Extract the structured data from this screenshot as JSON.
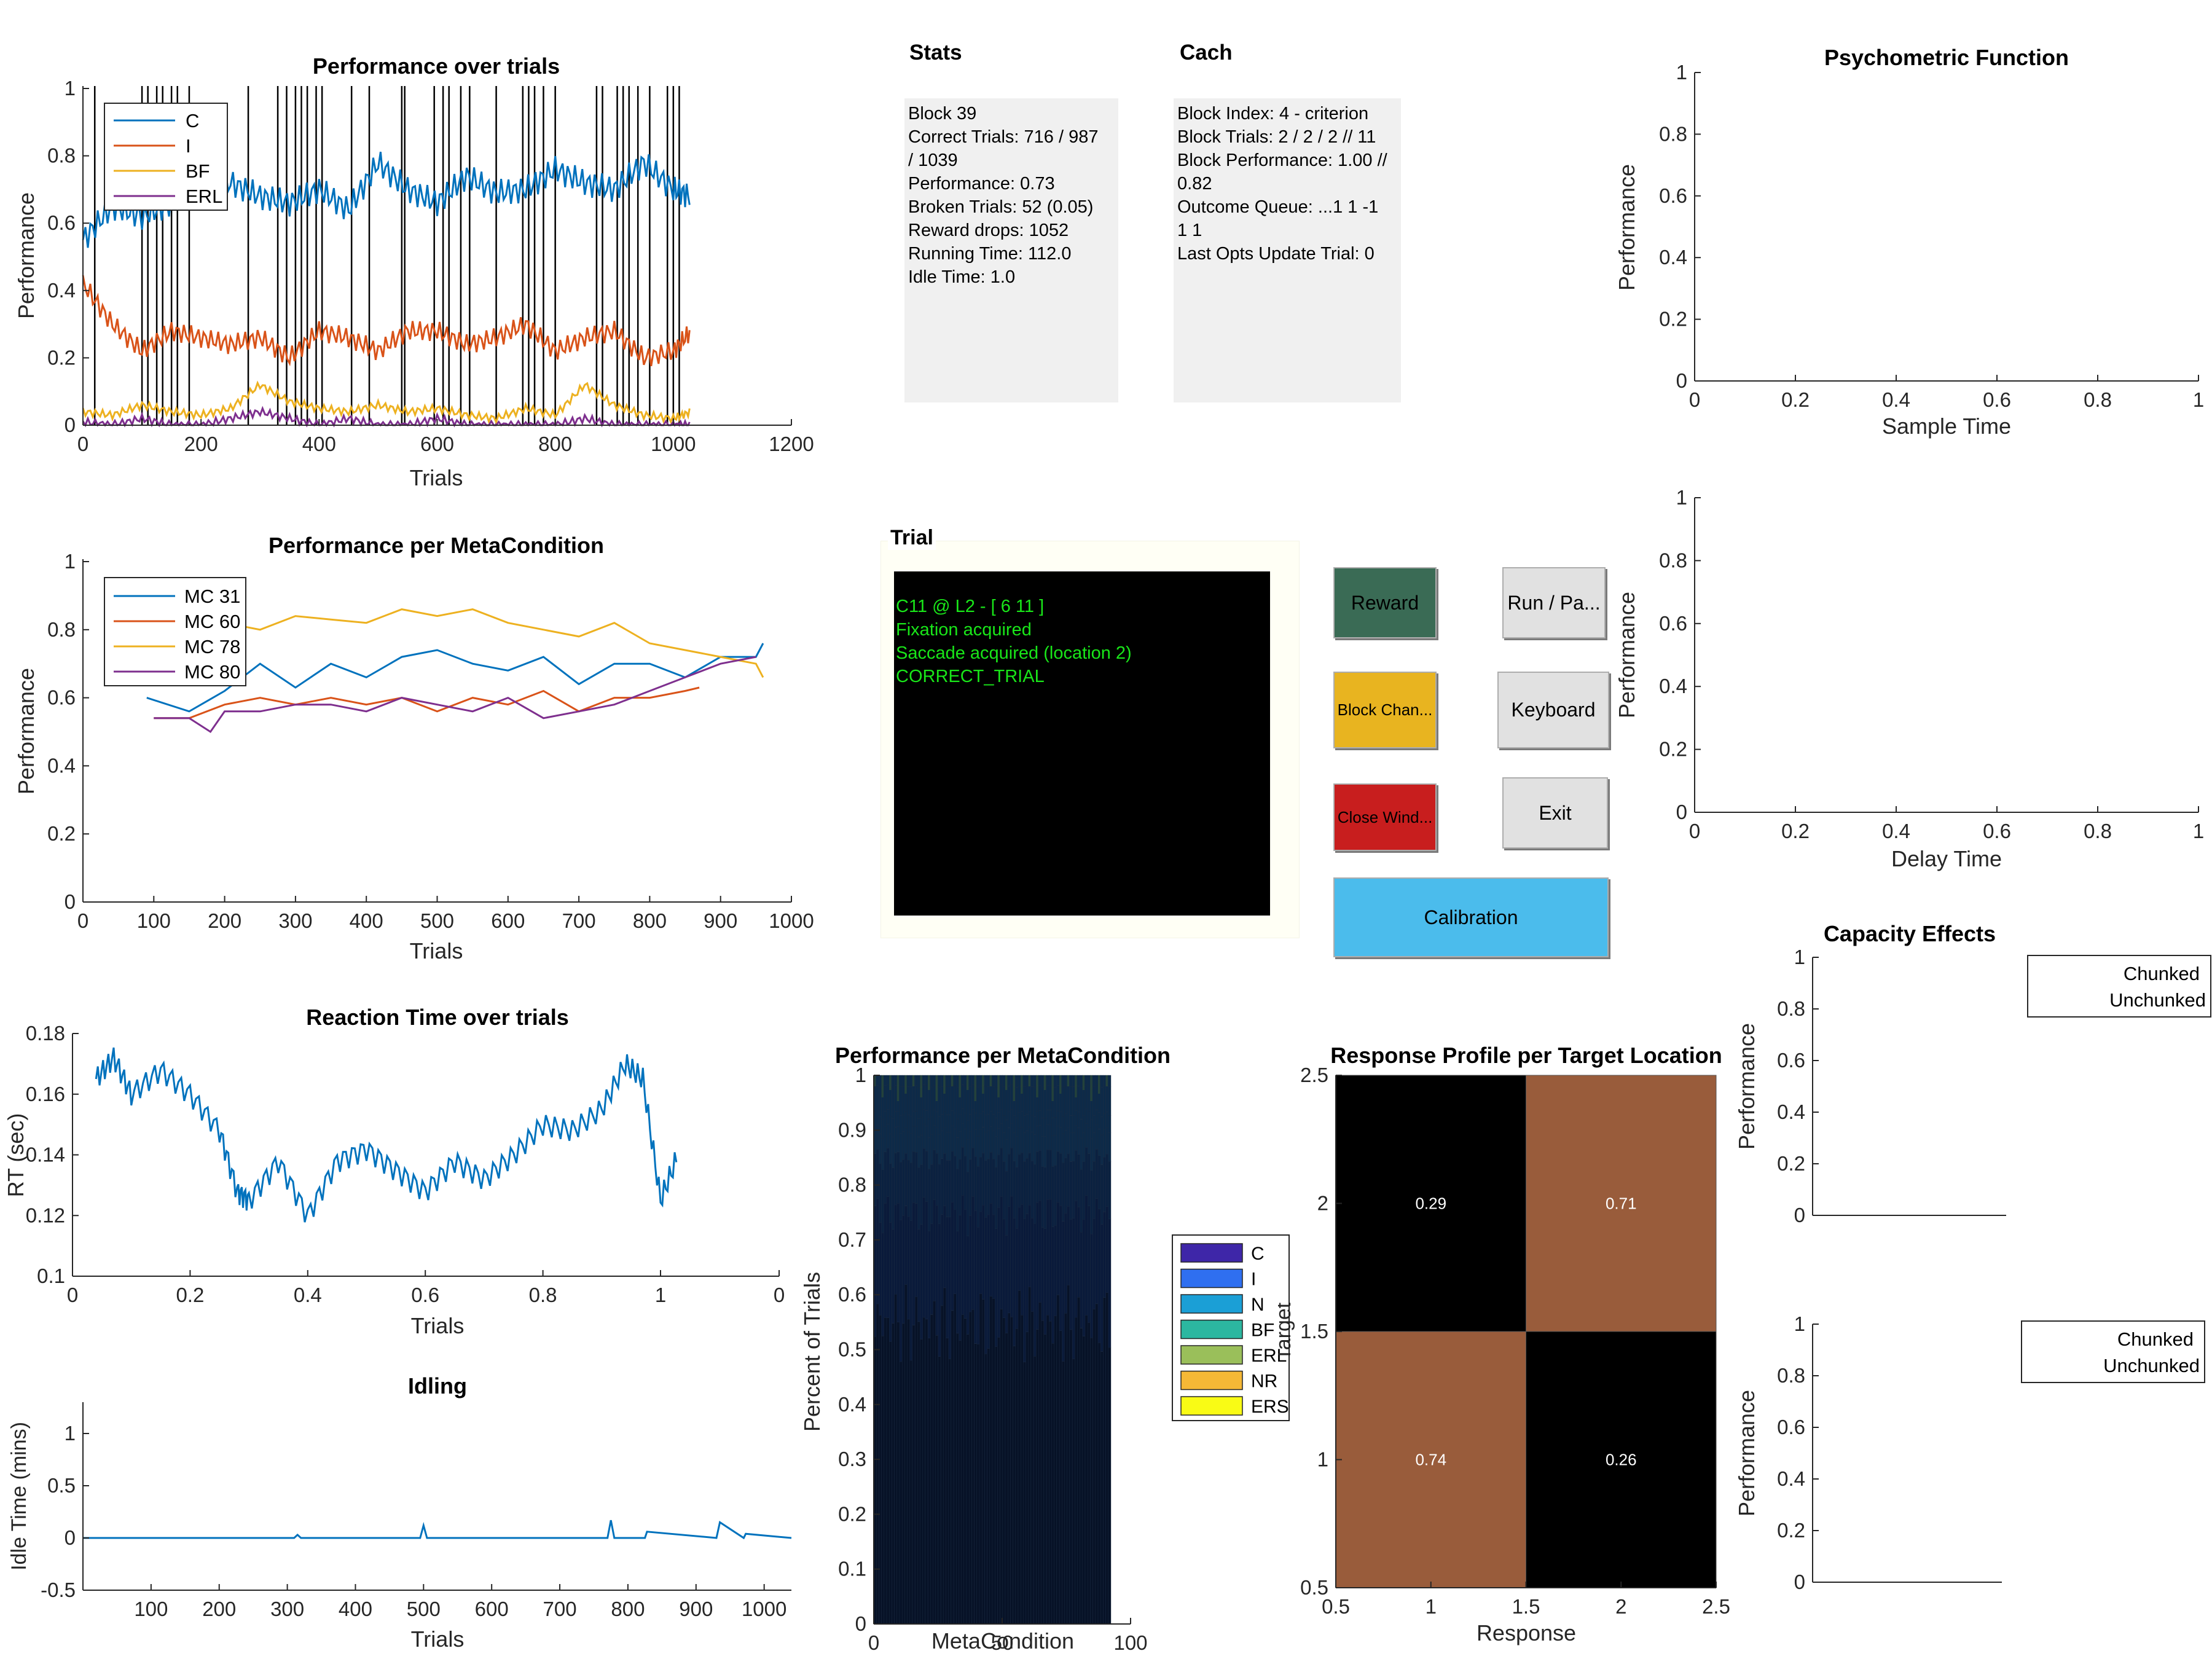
{
  "perf_trials": {
    "title": "Performance over trials",
    "xlabel": "Trials",
    "ylabel": "Performance",
    "xticks": [
      "0",
      "200",
      "400",
      "600",
      "800",
      "1000",
      "1200"
    ],
    "yticks": [
      "0",
      "0.2",
      "0.4",
      "0.6",
      "0.8",
      "1"
    ],
    "legend": [
      {
        "label": "C",
        "color": "#0072BD"
      },
      {
        "label": "I",
        "color": "#D95319"
      },
      {
        "label": "BF",
        "color": "#EDB120"
      },
      {
        "label": "ERL",
        "color": "#7E2F8E"
      }
    ]
  },
  "perf_meta": {
    "title": "Performance per MetaCondition",
    "xlabel": "Trials",
    "ylabel": "Performance",
    "xticks": [
      "0",
      "100",
      "200",
      "300",
      "400",
      "500",
      "600",
      "700",
      "800",
      "900",
      "1000"
    ],
    "yticks": [
      "0",
      "0.2",
      "0.4",
      "0.6",
      "0.8",
      "1"
    ],
    "legend": [
      {
        "label": "MC 31",
        "color": "#0072BD"
      },
      {
        "label": "MC 60",
        "color": "#D95319"
      },
      {
        "label": "MC 78",
        "color": "#EDB120"
      },
      {
        "label": "MC 80",
        "color": "#7E2F8E"
      }
    ]
  },
  "rt": {
    "title": "Reaction Time over trials",
    "xlabel": "Trials",
    "ylabel": "RT (sec)",
    "xticks": [
      "0",
      "0.2",
      "0.4",
      "0.6",
      "0.8",
      "1",
      "0"
    ],
    "yticks": [
      "0.1",
      "0.12",
      "0.14",
      "0.16",
      "0.18"
    ]
  },
  "idle": {
    "title": "Idling",
    "xlabel": "Trials",
    "ylabel": "Idle Time (mins)",
    "xticks": [
      "100",
      "200",
      "300",
      "400",
      "500",
      "600",
      "700",
      "800",
      "900",
      "1000"
    ],
    "yticks": [
      "-0.5",
      "0",
      "0.5",
      "1"
    ]
  },
  "stats": {
    "title": "Stats",
    "lines": [
      "Block 39",
      "Correct Trials: 716 / 987",
      "/ 1039",
      "Performance: 0.73",
      "Broken Trials: 52 (0.05)",
      "Reward drops: 1052",
      "Running Time: 112.0",
      "Idle Time: 1.0"
    ]
  },
  "cach": {
    "title": "Cach",
    "lines": [
      "Block Index: 4 - criterion",
      "Block Trials: 2 / 2 / 2 // 11",
      "Block Performance: 1.00 //",
      "0.82",
      "Outcome Queue: ...1 1 -1",
      "1 1",
      "Last Opts Update Trial: 0"
    ]
  },
  "trial": {
    "title": "Trial",
    "lines": [
      "C11 @ L2 - [ 6 11 ]",
      "Fixation acquired",
      "Saccade acquired (location 2)",
      "CORRECT_TRIAL"
    ]
  },
  "buttons": {
    "reward": "Reward",
    "run_pause": "Run / Pa...",
    "block_change": "Block Chan...",
    "keyboard": "Keyboard",
    "close_window": "Close Wind...",
    "exit": "Exit",
    "calibration": "Calibration"
  },
  "colors": {
    "reward": "#3a6b55",
    "block_change": "#e8b420",
    "close_window": "#c81e1e",
    "calibration": "#4bbcec",
    "default_button": "#e1e1e1"
  },
  "psy1": {
    "title": "Psychometric Function",
    "xlabel": "Sample Time",
    "ylabel": "Performance",
    "xticks": [
      "0",
      "0.2",
      "0.4",
      "0.6",
      "0.8",
      "1"
    ],
    "yticks": [
      "0",
      "0.2",
      "0.4",
      "0.6",
      "0.8",
      "1"
    ]
  },
  "psy2": {
    "xlabel": "Delay Time",
    "ylabel": "Performance",
    "xticks": [
      "0",
      "0.2",
      "0.4",
      "0.6",
      "0.8",
      "1"
    ],
    "yticks": [
      "0",
      "0.2",
      "0.4",
      "0.6",
      "0.8",
      "1"
    ]
  },
  "cap1": {
    "title": "Capacity Effects",
    "ylabel": "Performance",
    "yticks": [
      "0",
      "0.2",
      "0.4",
      "0.6",
      "0.8",
      "1"
    ],
    "legend": [
      "Chunked",
      "Unchunked"
    ]
  },
  "cap2": {
    "ylabel": "Performance",
    "yticks": [
      "0",
      "0.2",
      "0.4",
      "0.6",
      "0.8",
      "1"
    ],
    "legend": [
      "Chunked",
      "Unchunked"
    ]
  },
  "bar_meta": {
    "title": "Performance per MetaCondition",
    "xlabel": "MetaCondition",
    "ylabel": "Percent of Trials",
    "xticks": [
      "0",
      "50",
      "100"
    ],
    "yticks": [
      "0",
      "0.1",
      "0.2",
      "0.3",
      "0.4",
      "0.5",
      "0.6",
      "0.7",
      "0.8",
      "0.9",
      "1"
    ],
    "legend": [
      {
        "label": "C",
        "color": "#3e26a8"
      },
      {
        "label": "I",
        "color": "#2f6ff0"
      },
      {
        "label": "N",
        "color": "#1b9fd6"
      },
      {
        "label": "BF",
        "color": "#2cb7a0"
      },
      {
        "label": "ERL",
        "color": "#9abf5a"
      },
      {
        "label": "NR",
        "color": "#f5b836"
      },
      {
        "label": "ERS",
        "color": "#f9fb15"
      }
    ]
  },
  "heat": {
    "title": "Response Profile per Target Location",
    "xlabel": "Response",
    "ylabel": "Target",
    "xticks": [
      "0.5",
      "1",
      "1.5",
      "2",
      "2.5"
    ],
    "yticks": [
      "0.5",
      "1",
      "1.5",
      "2",
      "2.5"
    ],
    "low_color": "#000000",
    "high_color": "#995c3b"
  },
  "chart_data": [
    {
      "type": "line",
      "title": "Performance over trials",
      "xlabel": "Trials",
      "ylabel": "Performance",
      "xlim": [
        0,
        1200
      ],
      "ylim": [
        0,
        1
      ],
      "grid": false,
      "legend": "top-left",
      "series": [
        {
          "name": "C",
          "x": [
            0,
            50,
            100,
            150,
            200,
            250,
            300,
            350,
            400,
            450,
            500,
            550,
            600,
            650,
            700,
            750,
            800,
            850,
            900,
            950,
            1000,
            1030
          ],
          "values": [
            0.55,
            0.65,
            0.62,
            0.66,
            0.7,
            0.72,
            0.68,
            0.66,
            0.7,
            0.64,
            0.78,
            0.7,
            0.66,
            0.74,
            0.69,
            0.7,
            0.76,
            0.72,
            0.7,
            0.78,
            0.7,
            0.68
          ]
        },
        {
          "name": "I",
          "x": [
            0,
            50,
            100,
            150,
            200,
            250,
            300,
            350,
            400,
            450,
            500,
            550,
            600,
            650,
            700,
            750,
            800,
            850,
            900,
            950,
            1000,
            1030
          ],
          "values": [
            0.42,
            0.3,
            0.22,
            0.28,
            0.26,
            0.24,
            0.26,
            0.2,
            0.28,
            0.26,
            0.22,
            0.28,
            0.28,
            0.24,
            0.26,
            0.3,
            0.22,
            0.26,
            0.28,
            0.2,
            0.22,
            0.28
          ]
        },
        {
          "name": "BF",
          "x": [
            0,
            50,
            100,
            150,
            200,
            250,
            300,
            350,
            400,
            450,
            500,
            550,
            600,
            650,
            700,
            750,
            800,
            850,
            900,
            950,
            1000,
            1030
          ],
          "values": [
            0.04,
            0.03,
            0.06,
            0.04,
            0.03,
            0.05,
            0.12,
            0.07,
            0.05,
            0.04,
            0.06,
            0.04,
            0.05,
            0.03,
            0.02,
            0.05,
            0.03,
            0.12,
            0.06,
            0.03,
            0.02,
            0.04
          ]
        },
        {
          "name": "ERL",
          "x": [
            0,
            50,
            100,
            150,
            200,
            250,
            300,
            350,
            400,
            450,
            500,
            550,
            600,
            650,
            700,
            750,
            800,
            850,
            900,
            950,
            1000,
            1030
          ],
          "values": [
            0.01,
            0.0,
            0.02,
            0.0,
            0.0,
            0.02,
            0.04,
            0.02,
            0.0,
            0.02,
            0.0,
            0.0,
            0.02,
            0.0,
            0.0,
            0.0,
            0.0,
            0.02,
            0.0,
            0.0,
            0.0,
            0.0
          ]
        }
      ],
      "vlines": [
        20,
        100,
        110,
        125,
        135,
        150,
        160,
        180,
        280,
        330,
        345,
        360,
        370,
        380,
        395,
        405,
        455,
        485,
        540,
        545,
        595,
        610,
        620,
        640,
        655,
        700,
        745,
        755,
        765,
        780,
        800,
        870,
        880,
        905,
        915,
        925,
        940,
        960,
        990,
        1000,
        1010
      ]
    },
    {
      "type": "line",
      "title": "Performance per MetaCondition",
      "xlabel": "Trials",
      "ylabel": "Performance",
      "xlim": [
        0,
        1000
      ],
      "ylim": [
        0,
        1
      ],
      "legend": "top-left",
      "series": [
        {
          "name": "MC 31",
          "x": [
            90,
            150,
            200,
            250,
            300,
            350,
            400,
            450,
            500,
            550,
            600,
            650,
            700,
            750,
            800,
            850,
            900,
            950,
            960
          ],
          "values": [
            0.6,
            0.56,
            0.62,
            0.7,
            0.63,
            0.7,
            0.66,
            0.72,
            0.74,
            0.7,
            0.68,
            0.72,
            0.64,
            0.7,
            0.7,
            0.66,
            0.72,
            0.72,
            0.76
          ]
        },
        {
          "name": "MC 60",
          "x": [
            100,
            150,
            200,
            250,
            300,
            350,
            400,
            450,
            500,
            550,
            600,
            650,
            700,
            750,
            800,
            850,
            870
          ],
          "values": [
            0.54,
            0.54,
            0.58,
            0.6,
            0.58,
            0.6,
            0.58,
            0.6,
            0.56,
            0.6,
            0.58,
            0.62,
            0.56,
            0.6,
            0.6,
            0.62,
            0.63
          ]
        },
        {
          "name": "MC 78",
          "x": [
            110,
            150,
            200,
            250,
            300,
            350,
            400,
            450,
            500,
            550,
            600,
            650,
            700,
            750,
            800,
            850,
            900,
            950,
            960
          ],
          "values": [
            0.7,
            0.76,
            0.82,
            0.8,
            0.84,
            0.83,
            0.82,
            0.86,
            0.84,
            0.86,
            0.82,
            0.8,
            0.78,
            0.82,
            0.76,
            0.74,
            0.72,
            0.7,
            0.66
          ]
        },
        {
          "name": "MC 80",
          "x": [
            100,
            150,
            180,
            200,
            250,
            300,
            350,
            400,
            450,
            500,
            550,
            600,
            650,
            700,
            750,
            800,
            850,
            900,
            950
          ],
          "values": [
            0.54,
            0.54,
            0.5,
            0.56,
            0.56,
            0.58,
            0.58,
            0.56,
            0.6,
            0.58,
            0.56,
            0.6,
            0.54,
            0.56,
            0.58,
            0.62,
            0.66,
            0.7,
            0.72
          ]
        }
      ]
    },
    {
      "type": "line",
      "title": "Reaction Time over trials",
      "xlabel": "Trials",
      "ylabel": "RT (sec)",
      "ylim": [
        0.1,
        0.18
      ],
      "series": [
        {
          "name": "",
          "x": [
            0.04,
            0.07,
            0.1,
            0.15,
            0.2,
            0.25,
            0.28,
            0.3,
            0.35,
            0.4,
            0.45,
            0.5,
            0.55,
            0.6,
            0.65,
            0.7,
            0.75,
            0.8,
            0.85,
            0.9,
            0.94,
            0.97,
            1.0,
            1.03
          ],
          "values": [
            0.165,
            0.172,
            0.16,
            0.168,
            0.16,
            0.148,
            0.128,
            0.125,
            0.138,
            0.12,
            0.138,
            0.142,
            0.135,
            0.128,
            0.138,
            0.132,
            0.14,
            0.15,
            0.148,
            0.155,
            0.17,
            0.165,
            0.125,
            0.14
          ]
        }
      ]
    },
    {
      "type": "line",
      "title": "Idling",
      "xlabel": "Trials",
      "ylabel": "Idle Time (mins)",
      "xlim": [
        0,
        1040
      ],
      "ylim": [
        -0.5,
        1.3
      ],
      "series": [
        {
          "name": "",
          "x": [
            0,
            310,
            315,
            320,
            495,
            500,
            505,
            770,
            775,
            780,
            825,
            828,
            930,
            935,
            970,
            973,
            1040
          ],
          "values": [
            0,
            0,
            0.03,
            0,
            0,
            0.12,
            0,
            0,
            0.17,
            0,
            0,
            0.06,
            0,
            0.15,
            0,
            0.04,
            0
          ]
        }
      ]
    },
    {
      "type": "bar",
      "title": "Performance per MetaCondition",
      "xlabel": "MetaCondition",
      "ylabel": "Percent of Trials",
      "xlim": [
        0,
        100
      ],
      "ylim": [
        0,
        1
      ],
      "stacked": true,
      "series_names": [
        "C",
        "I",
        "N",
        "BF",
        "ERL",
        "NR",
        "ERS"
      ]
    },
    {
      "type": "heatmap",
      "title": "Response Profile per Target Location",
      "xlabel": "Response",
      "ylabel": "Target",
      "x": [
        1,
        2
      ],
      "y": [
        1,
        2
      ],
      "values": [
        [
          0.74,
          0.26
        ],
        [
          0.29,
          0.71
        ]
      ],
      "labels": [
        "0.74",
        "0.26",
        "0.29",
        "0.71"
      ]
    },
    {
      "type": "line",
      "title": "Psychometric Function",
      "xlabel": "Sample Time",
      "ylabel": "Performance",
      "xlim": [
        0,
        1
      ],
      "ylim": [
        0,
        1
      ],
      "series": []
    },
    {
      "type": "line",
      "xlabel": "Delay Time",
      "ylabel": "Performance",
      "xlim": [
        0,
        1
      ],
      "ylim": [
        0,
        1
      ],
      "series": []
    },
    {
      "type": "line",
      "title": "Capacity Effects",
      "ylabel": "Performance",
      "ylim": [
        0,
        1
      ],
      "legend": "top-right",
      "series": [
        {
          "name": "Chunked",
          "values": []
        },
        {
          "name": "Unchunked",
          "values": []
        }
      ]
    },
    {
      "type": "line",
      "ylabel": "Performance",
      "ylim": [
        0,
        1
      ],
      "legend": "top-right",
      "series": [
        {
          "name": "Chunked",
          "values": []
        },
        {
          "name": "Unchunked",
          "values": []
        }
      ]
    }
  ]
}
